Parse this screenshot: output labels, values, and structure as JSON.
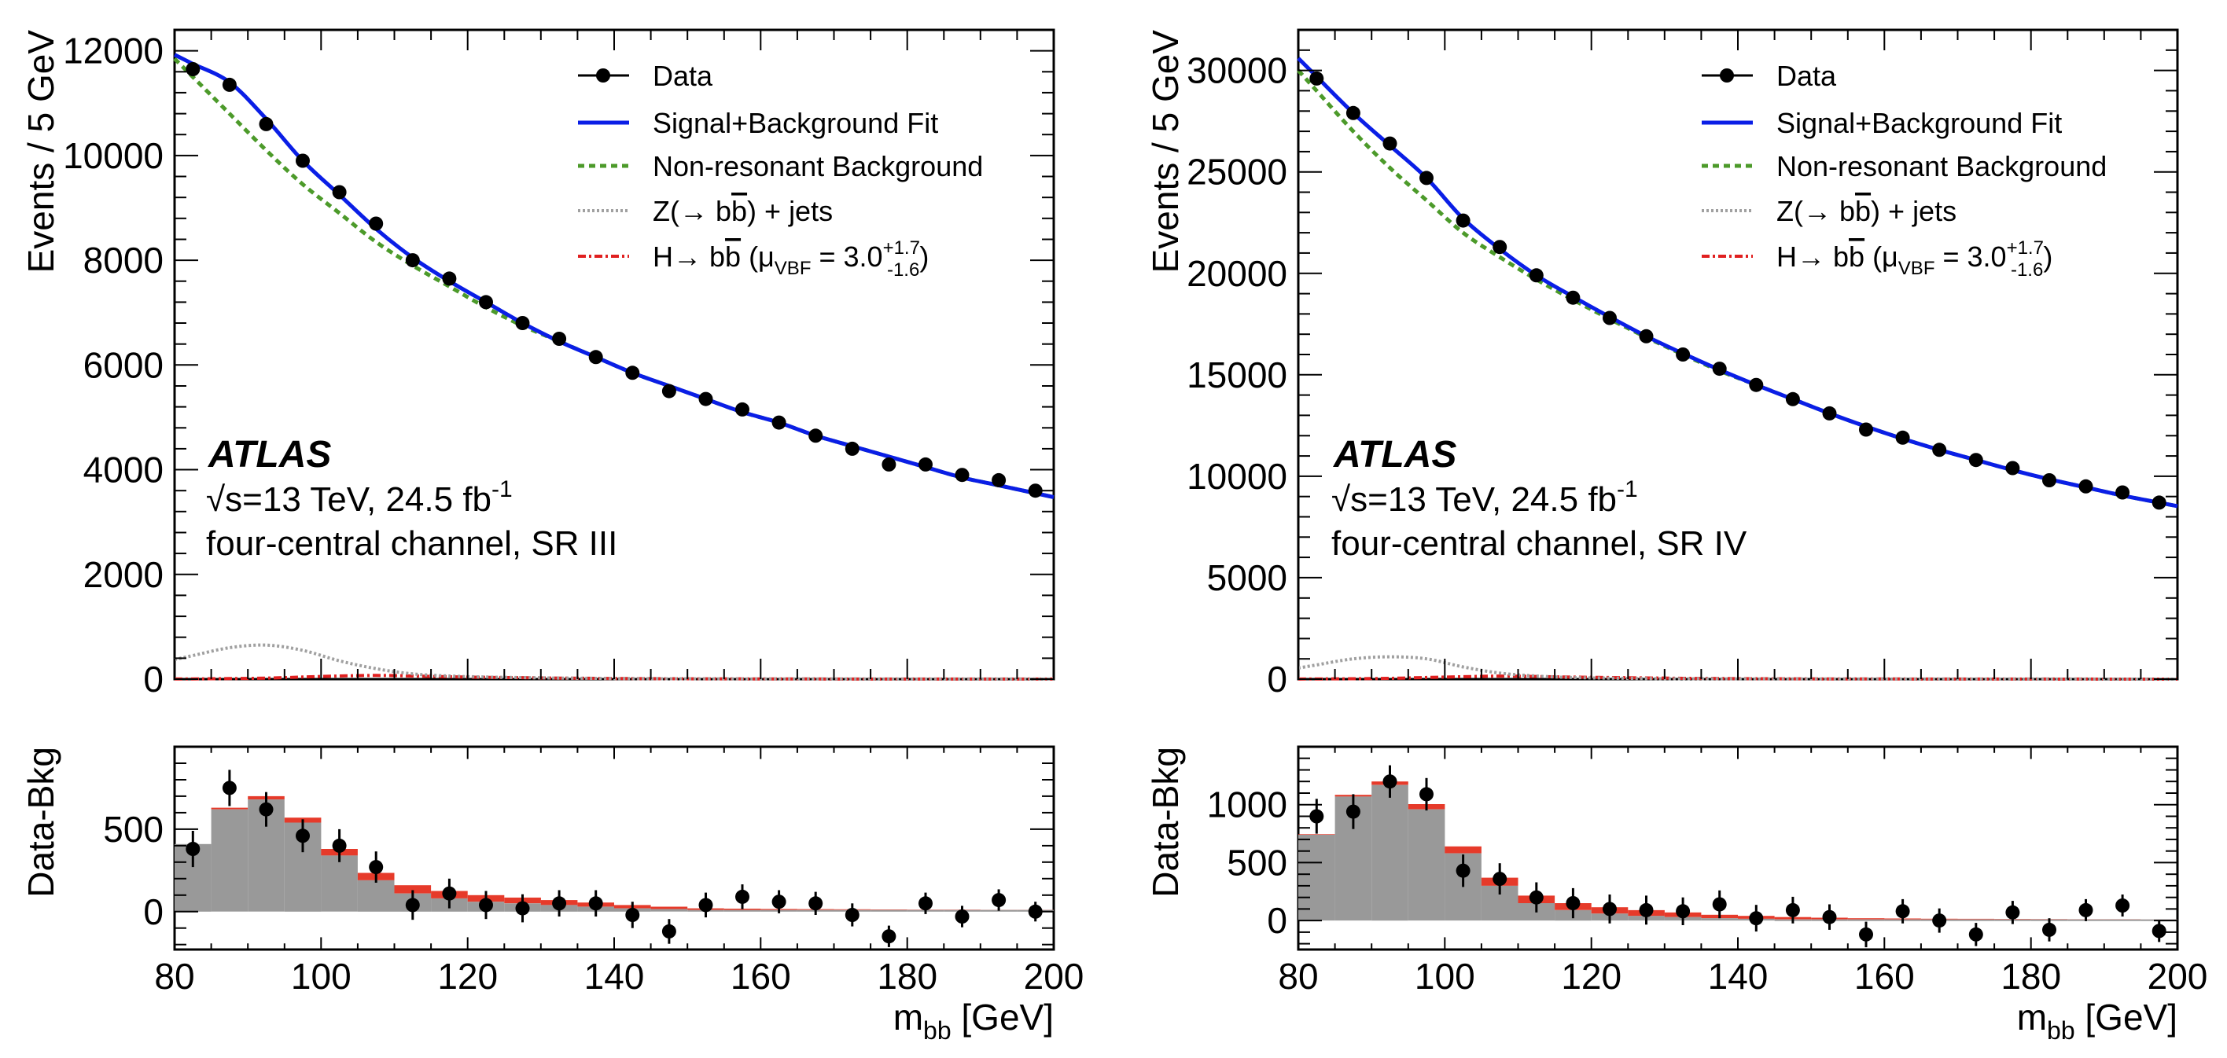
{
  "figure": {
    "x_unit_label": "m",
    "x_unit_sub": "bb",
    "x_unit_rest": " [GeV]",
    "legend": {
      "data": "Data",
      "fit": "Signal+Background Fit",
      "bkg": "Non-resonant Background",
      "z_prefix": "Z(→ b",
      "z_bbar": "b",
      "z_suffix": ") + jets",
      "h_prefix": "H→ b",
      "h_bbar": "b",
      "h_mu": " (μ",
      "h_vbf": "VBF",
      "h_eq": " =  3.0",
      "h_up": "+1.7",
      "h_down": "-1.6",
      "h_close": ")"
    },
    "atlas": "ATLAS",
    "energy_sqrt": "√",
    "energy": "s=13 TeV, 24.5 fb",
    "energy_exp": "-1",
    "colors": {
      "fit": "#0a1ee6",
      "bkg": "#4c9a2a",
      "z": "#a0a0a0",
      "h": "#e02020",
      "ratio_fill": "#999999",
      "signal_fill": "#e63a2a"
    }
  },
  "chart_data": [
    {
      "type": "line",
      "panel": "left",
      "channel": "four-central channel, SR III",
      "ylabel": "Events / 5 GeV",
      "ratio_ylabel": "Data-Bkg",
      "xlabel": "m_bb [GeV]",
      "xlim": [
        80,
        200
      ],
      "ylim": [
        0,
        12400
      ],
      "y_ticks": [
        0,
        2000,
        4000,
        6000,
        8000,
        10000,
        12000
      ],
      "ratio_ylim": [
        -230,
        1000
      ],
      "ratio_ticks": [
        0,
        500
      ],
      "x_ticks": [
        80,
        100,
        120,
        140,
        160,
        180,
        200
      ],
      "bin_centers": [
        82.5,
        87.5,
        92.5,
        97.5,
        102.5,
        107.5,
        112.5,
        117.5,
        122.5,
        127.5,
        132.5,
        137.5,
        142.5,
        147.5,
        152.5,
        157.5,
        162.5,
        167.5,
        172.5,
        177.5,
        182.5,
        187.5,
        192.5,
        197.5
      ],
      "data": [
        11650,
        11350,
        10600,
        9900,
        9300,
        8700,
        8000,
        7650,
        7200,
        6800,
        6500,
        6150,
        5850,
        5500,
        5350,
        5150,
        4900,
        4650,
        4400,
        4100,
        4100,
        3900,
        3800,
        3600
      ],
      "fit": [
        11750,
        11400,
        10700,
        9900,
        9250,
        8600,
        8050,
        7600,
        7200,
        6800,
        6450,
        6150,
        5850,
        5600,
        5350,
        5100,
        4900,
        4650,
        4450,
        4250,
        4050,
        3850,
        3700,
        3550
      ],
      "background": [
        11500,
        10800,
        10100,
        9450,
        8900,
        8350,
        7900,
        7500,
        7100,
        6750,
        6450,
        6150,
        5850,
        5600,
        5350,
        5100,
        4900,
        4650,
        4450,
        4250,
        4050,
        3850,
        3700,
        3550
      ],
      "z_jets": [
        450,
        600,
        650,
        550,
        350,
        200,
        100,
        60,
        40,
        30,
        20,
        15,
        10,
        8,
        6,
        5,
        4,
        3,
        3,
        2,
        2,
        2,
        1,
        1
      ],
      "higgs": [
        5,
        10,
        20,
        40,
        60,
        70,
        60,
        45,
        35,
        28,
        20,
        15,
        10,
        8,
        6,
        5,
        4,
        3,
        2,
        2,
        1,
        1,
        1,
        1
      ],
      "ratio_points": [
        380,
        750,
        620,
        460,
        400,
        270,
        40,
        110,
        40,
        20,
        50,
        50,
        -20,
        -120,
        40,
        90,
        60,
        50,
        -20,
        -150,
        50,
        -30,
        70,
        0
      ],
      "ratio_errors": [
        110,
        110,
        105,
        100,
        100,
        95,
        90,
        90,
        85,
        85,
        80,
        80,
        80,
        75,
        75,
        75,
        70,
        70,
        70,
        65,
        65,
        65,
        65,
        60
      ],
      "ratio_model": [
        410,
        620,
        680,
        540,
        340,
        190,
        110,
        80,
        60,
        50,
        40,
        30,
        20,
        15,
        10,
        10,
        10,
        10,
        10,
        10,
        10,
        10,
        10,
        10
      ],
      "ratio_signal": [
        0,
        10,
        20,
        30,
        40,
        45,
        50,
        45,
        40,
        35,
        30,
        25,
        20,
        15,
        10,
        8,
        6,
        5,
        4,
        3,
        2,
        2,
        1,
        1
      ]
    },
    {
      "type": "line",
      "panel": "right",
      "channel": "four-central channel, SR IV",
      "ylabel": "Events / 5 GeV",
      "ratio_ylabel": "Data-Bkg",
      "xlabel": "m_bb [GeV]",
      "xlim": [
        80,
        200
      ],
      "ylim": [
        0,
        32000
      ],
      "y_ticks": [
        0,
        5000,
        10000,
        15000,
        20000,
        25000,
        30000
      ],
      "ratio_ylim": [
        -250,
        1500
      ],
      "ratio_ticks": [
        0,
        500,
        1000
      ],
      "x_ticks": [
        80,
        100,
        120,
        140,
        160,
        180,
        200
      ],
      "bin_centers": [
        82.5,
        87.5,
        92.5,
        97.5,
        102.5,
        107.5,
        112.5,
        117.5,
        122.5,
        127.5,
        132.5,
        137.5,
        142.5,
        147.5,
        152.5,
        157.5,
        162.5,
        167.5,
        172.5,
        177.5,
        182.5,
        187.5,
        192.5,
        197.5
      ],
      "data": [
        29600,
        27900,
        26400,
        24700,
        22600,
        21300,
        19900,
        18800,
        17800,
        16900,
        16000,
        15300,
        14500,
        13800,
        13100,
        12300,
        11900,
        11300,
        10800,
        10400,
        9800,
        9500,
        9200,
        8700
      ],
      "fit": [
        29700,
        27900,
        26300,
        24700,
        22700,
        21200,
        19900,
        18850,
        17850,
        16900,
        16050,
        15250,
        14500,
        13800,
        13100,
        12450,
        11850,
        11300,
        10800,
        10300,
        9850,
        9450,
        9050,
        8700
      ],
      "background": [
        29000,
        27000,
        25200,
        23600,
        22000,
        20800,
        19700,
        18700,
        17750,
        16850,
        16000,
        15200,
        14500,
        13800,
        13100,
        12450,
        11850,
        11300,
        10800,
        10300,
        9850,
        9450,
        9050,
        8700
      ],
      "z_jets": [
        700,
        1000,
        1100,
        1000,
        600,
        300,
        150,
        80,
        50,
        30,
        20,
        15,
        10,
        8,
        6,
        5,
        4,
        3,
        3,
        2,
        2,
        2,
        1,
        1
      ],
      "higgs": [
        10,
        20,
        40,
        80,
        120,
        150,
        130,
        100,
        80,
        60,
        40,
        30,
        20,
        15,
        10,
        8,
        6,
        5,
        4,
        3,
        2,
        2,
        1,
        1
      ],
      "ratio_points": [
        900,
        940,
        1200,
        1090,
        430,
        360,
        200,
        150,
        100,
        90,
        80,
        140,
        20,
        90,
        30,
        -120,
        80,
        0,
        -120,
        70,
        -80,
        90,
        130,
        -90
      ],
      "ratio_errors": [
        150,
        150,
        140,
        140,
        140,
        135,
        130,
        130,
        125,
        125,
        120,
        120,
        115,
        115,
        110,
        110,
        105,
        105,
        100,
        100,
        100,
        95,
        95,
        95
      ],
      "ratio_model": [
        740,
        1070,
        1170,
        960,
        580,
        300,
        150,
        90,
        60,
        40,
        30,
        20,
        15,
        10,
        10,
        10,
        10,
        10,
        10,
        10,
        10,
        10,
        10,
        10
      ],
      "ratio_signal": [
        5,
        15,
        30,
        45,
        60,
        70,
        65,
        60,
        55,
        50,
        40,
        30,
        25,
        20,
        15,
        10,
        8,
        6,
        5,
        4,
        3,
        2,
        2,
        1
      ]
    }
  ]
}
